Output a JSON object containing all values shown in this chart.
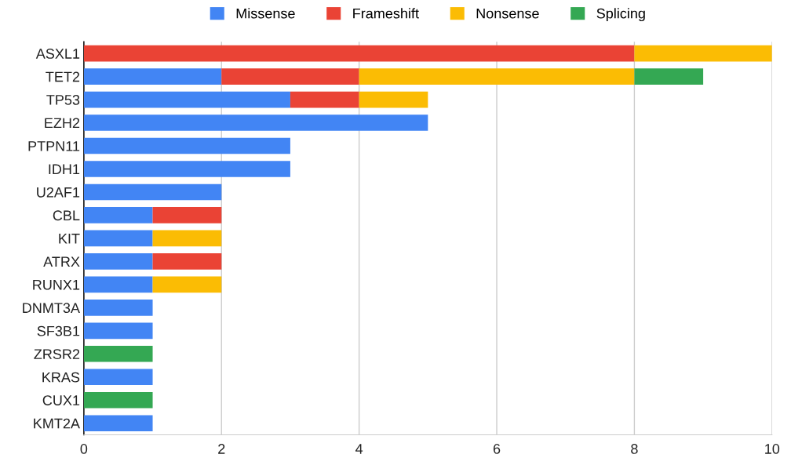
{
  "chart_data": {
    "type": "bar",
    "orientation": "horizontal",
    "stacked": true,
    "categories": [
      "ASXL1",
      "TET2",
      "TP53",
      "EZH2",
      "PTPN11",
      "IDH1",
      "U2AF1",
      "CBL",
      "KIT",
      "ATRX",
      "RUNX1",
      "DNMT3A",
      "SF3B1",
      "ZRSR2",
      "KRAS",
      "CUX1",
      "KMT2A"
    ],
    "series": [
      {
        "name": "Missense",
        "color": "#4285f4",
        "values": [
          0,
          2,
          3,
          5,
          3,
          3,
          2,
          1,
          1,
          1,
          1,
          1,
          1,
          0,
          1,
          0,
          1
        ]
      },
      {
        "name": "Frameshift",
        "color": "#ea4335",
        "values": [
          8,
          2,
          1,
          0,
          0,
          0,
          0,
          1,
          0,
          1,
          0,
          0,
          0,
          0,
          0,
          0,
          0
        ]
      },
      {
        "name": "Nonsense",
        "color": "#fbbc04",
        "values": [
          2,
          4,
          1,
          0,
          0,
          0,
          0,
          0,
          1,
          0,
          1,
          0,
          0,
          0,
          0,
          0,
          0
        ]
      },
      {
        "name": "Splicing",
        "color": "#34a853",
        "values": [
          0,
          1,
          0,
          0,
          0,
          0,
          0,
          0,
          0,
          0,
          0,
          0,
          0,
          1,
          0,
          1,
          0
        ]
      }
    ],
    "xlim": [
      0,
      10
    ],
    "xticks": [
      0,
      2,
      4,
      6,
      8,
      10
    ],
    "grid": "x",
    "legend": "top"
  }
}
